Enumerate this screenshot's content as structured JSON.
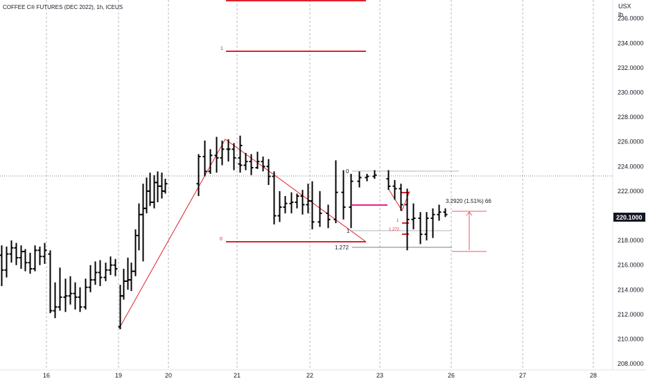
{
  "chart_data": {
    "type": "ohlc",
    "title": "COFFEE C® FUTURES (DEC 2022), 1h, ICEUS",
    "currency": "USX",
    "unit": "lb",
    "ylim": [
      207.5,
      237.5
    ],
    "y_ticks": [
      "208.0000",
      "210.0000",
      "212.0000",
      "214.0000",
      "216.0000",
      "218.0000",
      "220.0000",
      "222.0000",
      "224.0000",
      "226.0000",
      "228.0000",
      "230.0000",
      "232.0000",
      "234.0000",
      "236.0000"
    ],
    "x_ticks": [
      "16",
      "19",
      "20",
      "21",
      "22",
      "23",
      "26",
      "27",
      "28"
    ],
    "last_price": "220.1000",
    "last_price_color": "#131722",
    "bar_color": "#000000",
    "grid": true,
    "bars": [
      [
        216.8,
        217.6,
        214.3,
        215.6
      ],
      [
        215.6,
        217.5,
        215.0,
        216.9
      ],
      [
        216.9,
        218.0,
        216.2,
        217.4
      ],
      [
        217.4,
        217.8,
        216.0,
        216.6
      ],
      [
        216.6,
        217.6,
        215.7,
        217.1
      ],
      [
        217.1,
        217.3,
        215.5,
        216.2
      ],
      [
        216.2,
        217.0,
        215.3,
        215.7
      ],
      [
        215.7,
        217.6,
        215.5,
        217.2
      ],
      [
        217.2,
        217.5,
        216.0,
        216.7
      ],
      [
        216.7,
        217.8,
        216.1,
        217.2
      ],
      [
        216.9,
        217.2,
        212.1,
        212.3
      ],
      [
        212.3,
        214.6,
        211.7,
        212.6
      ],
      [
        212.6,
        215.8,
        212.3,
        213.4
      ],
      [
        213.4,
        214.9,
        212.2,
        213.5
      ],
      [
        213.5,
        215.1,
        212.8,
        213.7
      ],
      [
        213.7,
        214.6,
        212.4,
        213.4
      ],
      [
        213.4,
        214.2,
        212.2,
        212.6
      ],
      [
        212.6,
        214.9,
        212.4,
        214.2
      ],
      [
        214.2,
        216.0,
        213.8,
        214.8
      ],
      [
        214.8,
        216.3,
        214.4,
        215.4
      ],
      [
        215.4,
        216.4,
        214.3,
        215.0
      ],
      [
        215.0,
        216.2,
        214.7,
        215.6
      ],
      [
        215.6,
        216.7,
        215.2,
        216.0
      ],
      [
        216.0,
        216.5,
        215.1,
        215.7
      ],
      [
        211.0,
        214.4,
        210.8,
        213.5
      ],
      [
        213.5,
        215.7,
        213.2,
        214.7
      ],
      [
        214.7,
        216.6,
        214.0,
        214.8
      ],
      [
        214.8,
        216.2,
        213.9,
        215.5
      ],
      [
        215.5,
        218.9,
        215.1,
        218.4
      ],
      [
        218.4,
        221.0,
        217.2,
        220.1
      ],
      [
        220.1,
        222.6,
        216.3,
        220.6
      ],
      [
        220.6,
        223.1,
        220.2,
        222.0
      ],
      [
        222.0,
        223.5,
        220.8,
        221.1
      ],
      [
        221.1,
        223.3,
        220.6,
        222.7
      ],
      [
        222.7,
        223.6,
        221.1,
        222.4
      ],
      [
        222.4,
        223.5,
        221.4,
        222.0
      ],
      [
        222.0,
        223.0,
        221.8,
        222.6
      ],
      [
        222.6,
        225.0,
        221.6,
        224.8
      ],
      [
        224.8,
        226.1,
        223.2,
        223.6
      ],
      [
        223.6,
        225.4,
        223.4,
        224.9
      ],
      [
        224.9,
        226.4,
        223.5,
        224.7
      ],
      [
        224.7,
        226.1,
        224.1,
        225.4
      ],
      [
        225.4,
        226.2,
        224.4,
        225.4
      ],
      [
        225.4,
        225.9,
        223.7,
        224.7
      ],
      [
        224.7,
        226.5,
        223.8,
        225.7
      ],
      [
        224.2,
        225.7,
        223.5,
        224.1
      ],
      [
        224.1,
        225.1,
        223.7,
        224.4
      ],
      [
        224.4,
        225.0,
        223.3,
        223.9
      ],
      [
        223.9,
        225.2,
        223.8,
        224.4
      ],
      [
        224.4,
        224.8,
        223.6,
        224.0
      ],
      [
        224.0,
        224.6,
        222.5,
        223.2
      ],
      [
        223.2,
        223.6,
        219.3,
        220.0
      ],
      [
        220.0,
        222.0,
        219.5,
        220.7
      ],
      [
        220.7,
        221.6,
        220.2,
        221.0
      ],
      [
        221.0,
        221.9,
        220.2,
        221.1
      ],
      [
        221.1,
        221.8,
        220.6,
        221.6
      ],
      [
        221.6,
        222.1,
        220.1,
        220.9
      ],
      [
        220.9,
        222.6,
        220.2,
        221.2
      ],
      [
        221.2,
        222.8,
        218.9,
        219.5
      ],
      [
        219.5,
        222.0,
        219.1,
        220.2
      ],
      [
        220.2,
        220.9,
        219.0,
        219.7
      ],
      [
        219.7,
        224.5,
        219.4,
        221.9
      ],
      [
        221.9,
        223.7,
        219.7,
        220.7
      ],
      [
        220.7,
        223.4,
        219.0,
        222.8
      ],
      [
        222.8,
        223.6,
        222.3,
        223.1
      ],
      [
        223.1,
        223.4,
        222.8,
        223.2
      ],
      [
        223.2,
        223.7,
        223.0,
        223.3
      ],
      [
        223.0,
        223.7,
        222.1,
        222.4
      ],
      [
        222.4,
        222.9,
        221.3,
        222.2
      ],
      [
        222.2,
        222.6,
        220.4,
        220.9
      ],
      [
        220.9,
        222.2,
        217.2,
        219.7
      ],
      [
        219.7,
        221.0,
        218.9,
        219.8
      ],
      [
        219.8,
        220.3,
        217.7,
        218.5
      ],
      [
        218.5,
        220.3,
        218.0,
        219.8
      ],
      [
        219.8,
        220.6,
        218.2,
        220.1
      ],
      [
        220.1,
        220.9,
        219.6,
        220.3
      ],
      [
        220.3,
        220.6,
        219.9,
        220.1
      ]
    ]
  },
  "annotations": {
    "fib_right_0": "0",
    "fib_right_1": "1",
    "fib_right_1272": "1.272",
    "fib_left_0": "0",
    "fib_left_1": "1",
    "fib_small_1": "1",
    "fib_small_1272": "1.272",
    "measure_label": "3.2920 (1.51%) 66"
  }
}
